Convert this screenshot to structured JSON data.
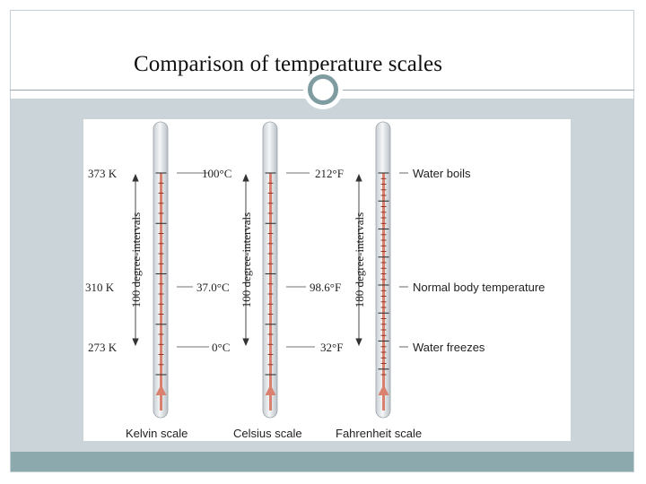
{
  "slide": {
    "title": "Comparison of temperature scales",
    "colors": {
      "panel": "#cbd4d9",
      "footer": "#8caaae",
      "mercury": "#d9806e",
      "scale_marks": "#8a2a1e"
    }
  },
  "figure": {
    "landmarks": [
      {
        "name": "Water boils",
        "kelvin": "373 K",
        "celsius": "100°C",
        "fahrenheit": "212°F"
      },
      {
        "name": "Normal body temperature",
        "kelvin": "310 K",
        "celsius": "37.0°C",
        "fahrenheit": "98.6°F"
      },
      {
        "name": "Water freezes",
        "kelvin": "273 K",
        "celsius": "0°C",
        "fahrenheit": "32°F"
      }
    ],
    "intervals": {
      "kelvin": "100 degree-intervals",
      "celsius": "100 degree-intervals",
      "fahrenheit": "180 degree-intervals"
    },
    "scales": {
      "kelvin": "Kelvin scale",
      "celsius": "Celsius scale",
      "fahrenheit": "Fahrenheit scale"
    }
  }
}
